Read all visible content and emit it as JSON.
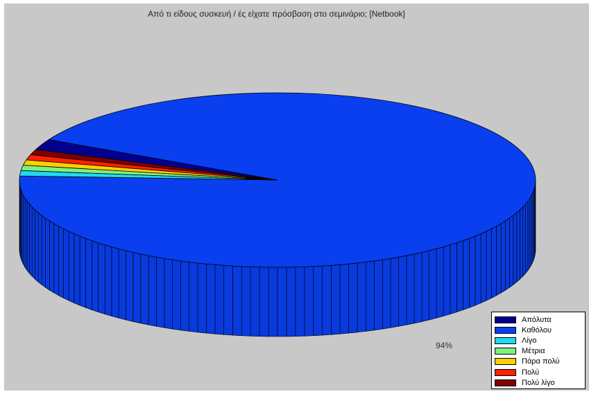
{
  "chart_data": {
    "type": "pie",
    "title": "Από τι είδους συσκευή / ές είχατε πρόσβαση στο σεμινάριο; [Netbook]",
    "slices": [
      {
        "label": "Απόλυτα",
        "value": 2,
        "display": "2%",
        "color": "#00008f"
      },
      {
        "label": "Καθόλου",
        "value": 94,
        "display": "94%",
        "color": "#0a3ff0"
      },
      {
        "label": "Λίγο",
        "value": 1,
        "display": "1%",
        "color": "#22d8f0"
      },
      {
        "label": "Μέτρια",
        "value": 1,
        "display": "< 1%",
        "color": "#7ff07f"
      },
      {
        "label": "Πάρα πολύ",
        "value": 1,
        "display": "< 1%",
        "color": "#ffd000"
      },
      {
        "label": "Πολύ",
        "value": 1,
        "display": "1%",
        "color": "#ff2000"
      },
      {
        "label": "Πολύ λίγο",
        "value": 1,
        "display": "1%",
        "color": "#800000"
      }
    ],
    "legend_position": "bottom-right"
  }
}
